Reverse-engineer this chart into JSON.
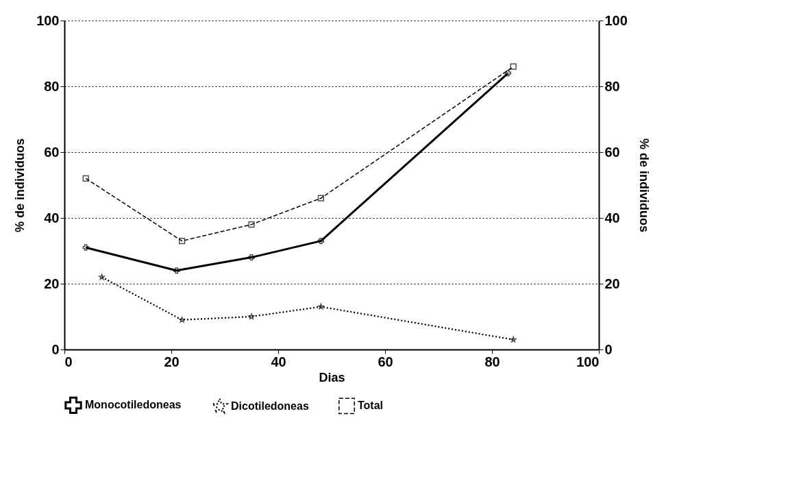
{
  "chart_data": {
    "type": "line",
    "xlabel": "Dias",
    "ylabel": "% de individuos",
    "y2label": "% de individuos",
    "xlim": [
      0,
      100
    ],
    "xticks": [
      0,
      20,
      40,
      60,
      80,
      100
    ],
    "ylim": [
      0,
      100
    ],
    "yticks": [
      0,
      20,
      40,
      60,
      80,
      100
    ],
    "y2lim": [
      0,
      100
    ],
    "y2ticks": [
      0,
      20,
      40,
      60,
      80,
      100
    ],
    "grid": "y",
    "legend": "bottom",
    "series": [
      {
        "name": "Monocotiledoneas",
        "color": "#000000",
        "marker": "cross",
        "line_style": "solid",
        "x": [
          4,
          21,
          35,
          48,
          83
        ],
        "values": [
          31,
          24,
          28,
          33,
          84
        ]
      },
      {
        "name": "Dicotiledoneas",
        "color": "#000000",
        "marker": "star",
        "line_style": "dotted",
        "x": [
          7,
          22,
          35,
          48,
          84
        ],
        "values": [
          22,
          9,
          10,
          13,
          3
        ]
      },
      {
        "name": "Total",
        "color": "#000000",
        "marker": "square",
        "line_style": "dashed",
        "x": [
          4,
          22,
          35,
          48,
          84
        ],
        "values": [
          52,
          33,
          38,
          46,
          86
        ]
      }
    ]
  }
}
